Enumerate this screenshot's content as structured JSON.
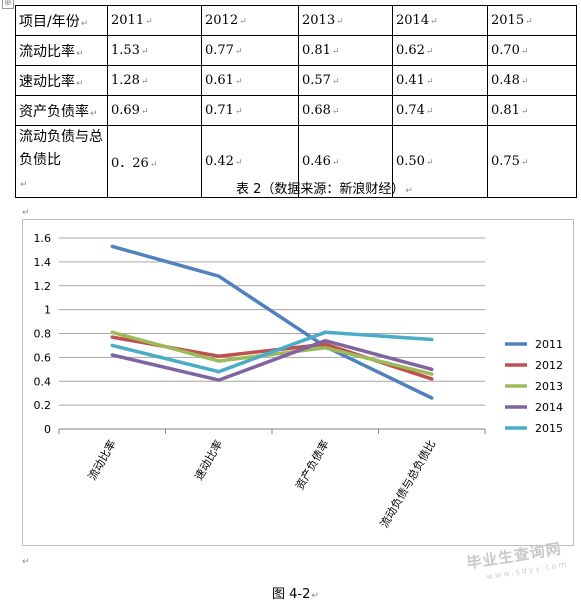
{
  "corner_marker": "⊕",
  "paragraph_mark": "↵",
  "table": {
    "header": [
      "项目/年份",
      "2011",
      "2012",
      "2013",
      "2014",
      "2015"
    ],
    "rows": [
      {
        "label": "流动比率",
        "values": [
          "1.53",
          "0.77",
          "0.81",
          "0.62",
          "0.70"
        ]
      },
      {
        "label": "速动比率",
        "values": [
          "1.28",
          "0.61",
          "0.57",
          "0.41",
          "0.48"
        ]
      },
      {
        "label": "资产负债率",
        "values": [
          "0.69",
          "0.71",
          "0.68",
          "0.74",
          "0.81"
        ]
      },
      {
        "label": "流动负债与总负债比",
        "values": [
          "0．26",
          "0.42",
          "0.46",
          "0.50",
          "0.75"
        ]
      }
    ]
  },
  "table_caption": "表 2（数据来源：新浪财经）",
  "chart_data": {
    "type": "line",
    "categories": [
      "流动比率",
      "速动比率",
      "资产负债率",
      "流动负债与总负债比"
    ],
    "ylim": [
      0,
      1.6
    ],
    "yticks": [
      "0",
      "0.2",
      "0.4",
      "0.6",
      "0.8",
      "1",
      "1.2",
      "1.4",
      "1.6"
    ],
    "grid": true,
    "legend": "right",
    "series": [
      {
        "name": "2011",
        "color": "#4f81bd",
        "values": [
          1.53,
          1.28,
          0.69,
          0.26
        ]
      },
      {
        "name": "2012",
        "color": "#c0504d",
        "values": [
          0.77,
          0.61,
          0.71,
          0.42
        ]
      },
      {
        "name": "2013",
        "color": "#9bbb59",
        "values": [
          0.81,
          0.57,
          0.68,
          0.46
        ]
      },
      {
        "name": "2014",
        "color": "#8064a2",
        "values": [
          0.62,
          0.41,
          0.74,
          0.5
        ]
      },
      {
        "name": "2015",
        "color": "#4bacc6",
        "values": [
          0.7,
          0.48,
          0.81,
          0.75
        ]
      }
    ]
  },
  "figure_caption": "图 4-2",
  "watermark": {
    "text": "毕业生查询网",
    "url": "www.sdyy.com"
  }
}
